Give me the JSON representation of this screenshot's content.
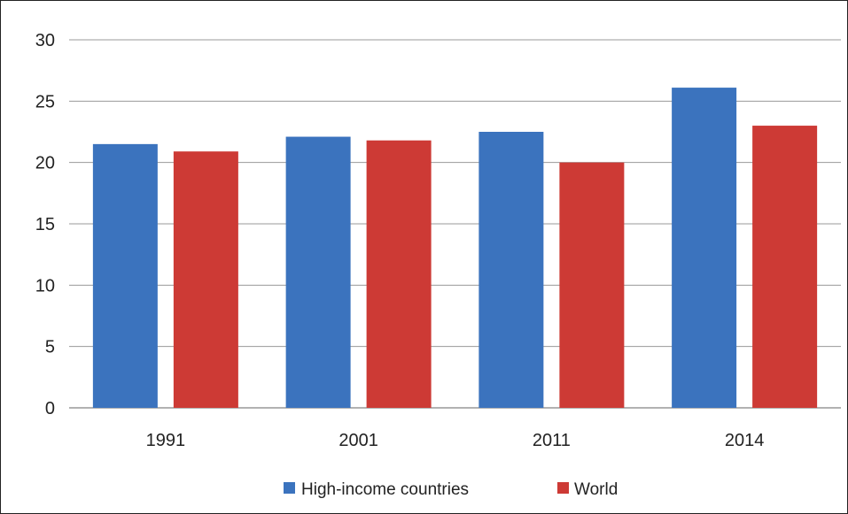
{
  "chart_data": {
    "type": "bar",
    "title": "",
    "xlabel": "",
    "ylabel": "",
    "categories": [
      "1991",
      "2001",
      "2011",
      "2014"
    ],
    "series": [
      {
        "name": "High-income countries",
        "color": "#3b73be",
        "values": [
          21.5,
          22.1,
          22.5,
          26.1
        ]
      },
      {
        "name": "World",
        "color": "#cd3a35",
        "values": [
          20.9,
          21.8,
          20.0,
          23.0
        ]
      }
    ],
    "ylim": [
      0,
      30
    ],
    "yticks": [
      0,
      5,
      10,
      15,
      20,
      25,
      30
    ],
    "grid": true,
    "legend_position": "bottom"
  }
}
